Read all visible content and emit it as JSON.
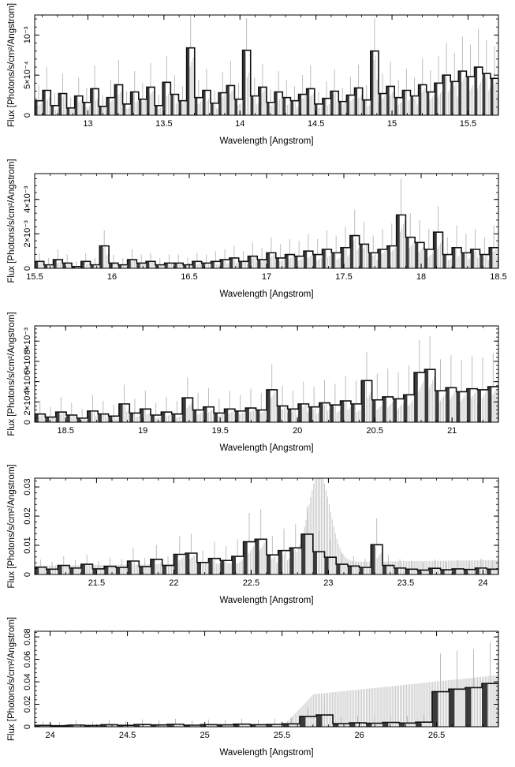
{
  "figure": {
    "xlabel": "Wavelength [Angstrom]",
    "ylabel": "Flux [Photons/s/cm²/Angstrom]"
  },
  "chart_data": [
    {
      "type": "histogram-step",
      "xlabel": "Wavelength [Angstrom]",
      "ylabel": "Flux [Photons/s/cm²/Angstrom]",
      "xlim": [
        12.65,
        15.7
      ],
      "ylim": [
        0,
        0.00125
      ],
      "xticks": [
        13,
        13.5,
        14,
        14.5,
        15,
        15.5
      ],
      "xtick_labels": [
        "13",
        "13.5",
        "14",
        "14.5",
        "15",
        "15.5"
      ],
      "yticks": [
        0,
        0.0005,
        0.001
      ],
      "ytick_labels": [
        "0",
        "5×10⁻⁴",
        "10⁻³"
      ],
      "flux": [
        0.00018,
        0.00031,
        0.00012,
        0.00027,
        9e-05,
        0.00024,
        0.00016,
        0.00033,
        0.00011,
        0.00022,
        0.00038,
        0.00014,
        0.00029,
        0.0002,
        0.00035,
        0.00012,
        0.00041,
        0.00026,
        0.00018,
        0.00084,
        0.00022,
        0.00031,
        0.00015,
        0.00028,
        0.00037,
        0.0002,
        0.00081,
        0.00024,
        0.00035,
        0.00016,
        0.00029,
        0.00022,
        0.00018,
        0.00026,
        0.00033,
        0.00014,
        0.00021,
        0.0003,
        0.00017,
        0.00025,
        0.00034,
        0.00019,
        0.0008,
        0.00027,
        0.00036,
        0.00022,
        0.00031,
        0.00024,
        0.00038,
        0.00029,
        0.0004,
        0.0005,
        0.00042,
        0.00055,
        0.00048,
        0.0006,
        0.00052,
        0.00046
      ],
      "error_upper": [
        0.00038,
        0.0006,
        0.00028,
        0.00052,
        0.00022,
        0.00047,
        0.00034,
        0.00062,
        0.00025,
        0.00044,
        0.00069,
        0.0003,
        0.00055,
        0.0004,
        0.00065,
        0.00026,
        0.00074,
        0.0005,
        0.00036,
        0.00126,
        0.00044,
        0.00058,
        0.00031,
        0.00054,
        0.00068,
        0.0004,
        0.00121,
        0.00047,
        0.00064,
        0.00032,
        0.00055,
        0.00044,
        0.00036,
        0.0005,
        0.00062,
        0.00029,
        0.00042,
        0.00057,
        0.00034,
        0.00048,
        0.00063,
        0.00038,
        0.00121,
        0.00052,
        0.00067,
        0.00044,
        0.00058,
        0.00047,
        0.00071,
        0.00056,
        0.00074,
        0.0009,
        0.00078,
        0.00098,
        0.00088,
        0.00108,
        0.00094,
        0.00086
      ]
    },
    {
      "type": "histogram-step",
      "xlabel": "Wavelength [Angstrom]",
      "ylabel": "Flux [Photons/s/cm²/Angstrom]",
      "xlim": [
        15.5,
        18.5
      ],
      "ylim": [
        0,
        0.0055
      ],
      "xticks": [
        15.5,
        16,
        16.5,
        17,
        17.5,
        18,
        18.5
      ],
      "xtick_labels": [
        "15.5",
        "16",
        "16.5",
        "17",
        "17.5",
        "18",
        "18.5"
      ],
      "yticks": [
        0,
        0.002,
        0.004
      ],
      "ytick_labels": [
        "0",
        "2×10⁻³",
        "4×10⁻³"
      ],
      "flux": [
        0.0004,
        0.0002,
        0.0005,
        0.0003,
        0.0001,
        0.0004,
        0.0002,
        0.0013,
        0.0003,
        0.0002,
        0.0005,
        0.0003,
        0.0004,
        0.0002,
        0.0003,
        0.0003,
        0.0002,
        0.0004,
        0.0003,
        0.0004,
        0.0005,
        0.0006,
        0.0004,
        0.0007,
        0.0005,
        0.0009,
        0.0006,
        0.0008,
        0.0007,
        0.001,
        0.0008,
        0.0011,
        0.0009,
        0.0012,
        0.0019,
        0.0014,
        0.0009,
        0.0011,
        0.0013,
        0.0031,
        0.0018,
        0.0015,
        0.0011,
        0.0021,
        0.0008,
        0.0012,
        0.0009,
        0.0011,
        0.0008,
        0.0012
      ],
      "error_upper": [
        0.0009,
        0.0006,
        0.0011,
        0.0008,
        0.0004,
        0.0009,
        0.0006,
        0.0022,
        0.0008,
        0.0006,
        0.0011,
        0.0008,
        0.0009,
        0.0006,
        0.0008,
        0.0008,
        0.0006,
        0.0009,
        0.0008,
        0.001,
        0.0011,
        0.0013,
        0.001,
        0.0015,
        0.0012,
        0.0018,
        0.0014,
        0.0017,
        0.0016,
        0.002,
        0.0017,
        0.0022,
        0.0019,
        0.0024,
        0.0034,
        0.0027,
        0.0019,
        0.0023,
        0.0026,
        0.0052,
        0.0032,
        0.0028,
        0.0023,
        0.0036,
        0.0018,
        0.0025,
        0.002,
        0.0023,
        0.0018,
        0.0025
      ]
    },
    {
      "type": "histogram-step",
      "xlabel": "Wavelength [Angstrom]",
      "ylabel": "Flux [Photons/s/cm²/Angstrom]",
      "xlim": [
        18.3,
        21.3
      ],
      "ylim": [
        0,
        0.0095
      ],
      "xticks": [
        18.5,
        19,
        19.5,
        20,
        20.5,
        21
      ],
      "xtick_labels": [
        "18.5",
        "19",
        "19.5",
        "20",
        "20.5",
        "21"
      ],
      "yticks": [
        0,
        0.002,
        0.004,
        0.006,
        0.008
      ],
      "ytick_labels": [
        "0",
        "2×10⁻³",
        "4×10⁻³",
        "6×10⁻³",
        "8×10⁻³"
      ],
      "flux": [
        0.0008,
        0.0005,
        0.001,
        0.0007,
        0.0004,
        0.0011,
        0.0008,
        0.0006,
        0.0018,
        0.0009,
        0.0013,
        0.0007,
        0.001,
        0.0008,
        0.0024,
        0.0012,
        0.0015,
        0.0009,
        0.0013,
        0.0011,
        0.0014,
        0.0012,
        0.0032,
        0.0016,
        0.0013,
        0.0018,
        0.0015,
        0.0019,
        0.0017,
        0.0021,
        0.0018,
        0.0041,
        0.0022,
        0.0025,
        0.0023,
        0.0027,
        0.0049,
        0.0052,
        0.0031,
        0.0034,
        0.003,
        0.0033,
        0.0032,
        0.0035
      ],
      "error_upper": [
        0.0021,
        0.0015,
        0.0025,
        0.0019,
        0.0013,
        0.0027,
        0.0021,
        0.0017,
        0.0037,
        0.0023,
        0.0031,
        0.0019,
        0.0025,
        0.0021,
        0.0044,
        0.0029,
        0.0034,
        0.0023,
        0.0031,
        0.0027,
        0.0033,
        0.0029,
        0.0057,
        0.0036,
        0.0031,
        0.004,
        0.0035,
        0.0042,
        0.0038,
        0.0046,
        0.0041,
        0.0069,
        0.0048,
        0.0053,
        0.0049,
        0.0056,
        0.0081,
        0.0085,
        0.0062,
        0.0066,
        0.0061,
        0.0065,
        0.0064,
        0.0068
      ]
    },
    {
      "type": "histogram-step",
      "xlabel": "Wavelength [Angstrom]",
      "ylabel": "Flux [Photons/s/cm²/Angstrom]",
      "xlim": [
        21.1,
        24.1
      ],
      "ylim": [
        0,
        0.033
      ],
      "xticks": [
        21.5,
        22,
        22.5,
        23,
        23.5,
        24
      ],
      "xtick_labels": [
        "21.5",
        "22",
        "22.5",
        "23",
        "23.5",
        "24"
      ],
      "yticks": [
        0,
        0.01,
        0.02,
        0.03
      ],
      "ytick_labels": [
        "0",
        "0.01",
        "0.02",
        "0.03"
      ],
      "flux": [
        0.0025,
        0.0018,
        0.0031,
        0.0022,
        0.0035,
        0.0019,
        0.0028,
        0.0024,
        0.0046,
        0.0027,
        0.0052,
        0.0031,
        0.0069,
        0.0073,
        0.0041,
        0.0055,
        0.0048,
        0.0062,
        0.0112,
        0.0121,
        0.0067,
        0.0082,
        0.0091,
        0.0138,
        0.0078,
        0.0059,
        0.0035,
        0.0029,
        0.0024,
        0.0102,
        0.0031,
        0.0022,
        0.0018,
        0.0015,
        0.0021,
        0.0016,
        0.0019,
        0.0017,
        0.0022,
        0.0018
      ],
      "error_upper": [
        0.0051,
        0.0044,
        0.0062,
        0.0049,
        0.0068,
        0.0046,
        0.0058,
        0.0053,
        0.0091,
        0.0057,
        0.0101,
        0.0062,
        0.0131,
        0.0139,
        0.0082,
        0.0112,
        0.0098,
        0.0121,
        0.0211,
        0.0224,
        0.0131,
        0.0158,
        0.0172,
        0.0231,
        0.0149,
        0.0118,
        0.0071,
        0.0062,
        0.0053,
        0.0192,
        0.0066,
        0.0052,
        0.0046,
        0.0041,
        0.0052,
        0.0043,
        0.0049,
        0.0045,
        0.0054,
        0.0047
      ],
      "model_peak": {
        "center": 22.94,
        "amplitude": 0.0305
      }
    },
    {
      "type": "histogram-step",
      "xlabel": "Wavelength [Angstrom]",
      "ylabel": "Flux [Photons/s/cm²/Angstrom]",
      "xlim": [
        23.9,
        26.9
      ],
      "ylim": [
        0,
        0.085
      ],
      "xticks": [
        24,
        24.5,
        25,
        25.5,
        26,
        26.5
      ],
      "xtick_labels": [
        "24",
        "24.5",
        "25",
        "25.5",
        "26",
        "26.5"
      ],
      "yticks": [
        0,
        0.02,
        0.04,
        0.06,
        0.08
      ],
      "ytick_labels": [
        "0",
        "0.02",
        "0.04",
        "0.06",
        "0.08"
      ],
      "flux": [
        0.0012,
        0.0009,
        0.0015,
        0.0011,
        0.0018,
        0.0013,
        0.002,
        0.0016,
        0.0022,
        0.0014,
        0.0019,
        0.0017,
        0.0023,
        0.0018,
        0.0021,
        0.0026,
        0.0092,
        0.0105,
        0.0028,
        0.0035,
        0.0031,
        0.0038,
        0.0033,
        0.0041,
        0.0312,
        0.0335,
        0.0348,
        0.0385
      ],
      "error_upper": [
        0.0048,
        0.0041,
        0.0055,
        0.0046,
        0.0062,
        0.0051,
        0.0066,
        0.0058,
        0.0071,
        0.0054,
        0.0064,
        0.006,
        0.0073,
        0.0062,
        0.0069,
        0.0079,
        0.0171,
        0.0188,
        0.0084,
        0.0095,
        0.0089,
        0.0101,
        0.0093,
        0.0108,
        0.0652,
        0.0678,
        0.0691,
        0.0752
      ],
      "model_rise": {
        "start": 25.5,
        "level_start": 0.028,
        "level_end": 0.046
      }
    }
  ]
}
